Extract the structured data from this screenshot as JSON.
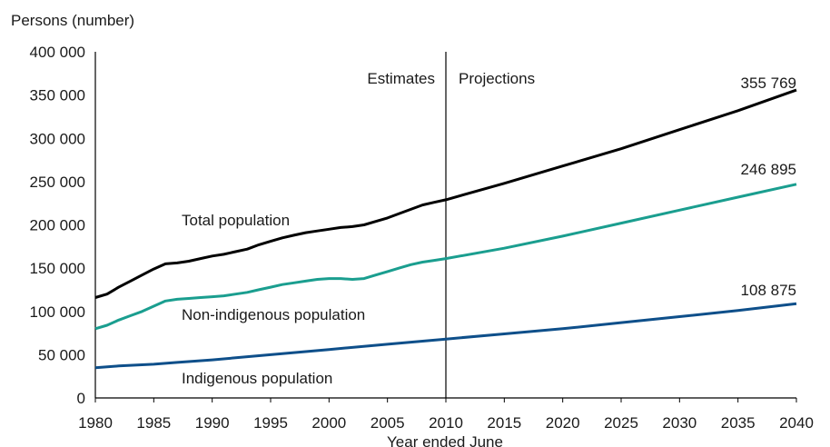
{
  "chart_data": {
    "type": "line",
    "ylabel": "Persons (number)",
    "xlabel": "Year ended June",
    "xlim": [
      1980,
      2040
    ],
    "ylim": [
      0,
      400000
    ],
    "x_ticks": [
      "1980",
      "1985",
      "1990",
      "1995",
      "2000",
      "2005",
      "2010",
      "2015",
      "2020",
      "2025",
      "2030",
      "2035",
      "2040"
    ],
    "y_ticks": [
      "0",
      "50 000",
      "100 000",
      "150 000",
      "200 000",
      "250 000",
      "300 000",
      "350 000",
      "400 000"
    ],
    "grid": false,
    "divider": {
      "x": 2010,
      "left_label": "Estimates",
      "right_label": "Projections"
    },
    "series": [
      {
        "name": "Total population",
        "color": "#000000",
        "end_label": "355 769",
        "points": [
          [
            1980,
            116000
          ],
          [
            1981,
            120000
          ],
          [
            1982,
            128000
          ],
          [
            1983,
            135000
          ],
          [
            1984,
            142000
          ],
          [
            1985,
            149000
          ],
          [
            1986,
            155000
          ],
          [
            1987,
            156000
          ],
          [
            1988,
            158000
          ],
          [
            1989,
            161000
          ],
          [
            1990,
            164000
          ],
          [
            1991,
            166000
          ],
          [
            1992,
            169000
          ],
          [
            1993,
            172000
          ],
          [
            1994,
            177000
          ],
          [
            1995,
            181000
          ],
          [
            1996,
            185000
          ],
          [
            1997,
            188000
          ],
          [
            1998,
            191000
          ],
          [
            1999,
            193000
          ],
          [
            2000,
            195000
          ],
          [
            2001,
            197000
          ],
          [
            2002,
            198000
          ],
          [
            2003,
            200000
          ],
          [
            2004,
            204000
          ],
          [
            2005,
            208000
          ],
          [
            2006,
            213000
          ],
          [
            2007,
            218000
          ],
          [
            2008,
            223000
          ],
          [
            2009,
            226000
          ],
          [
            2010,
            229000
          ],
          [
            2015,
            248000
          ],
          [
            2020,
            268000
          ],
          [
            2025,
            288000
          ],
          [
            2030,
            310000
          ],
          [
            2035,
            332000
          ],
          [
            2040,
            355769
          ]
        ]
      },
      {
        "name": "Non-indigenous population",
        "color": "#1a9e8f",
        "end_label": "246 895",
        "points": [
          [
            1980,
            80000
          ],
          [
            1981,
            84000
          ],
          [
            1982,
            90000
          ],
          [
            1983,
            95000
          ],
          [
            1984,
            100000
          ],
          [
            1985,
            106000
          ],
          [
            1986,
            112000
          ],
          [
            1987,
            114000
          ],
          [
            1988,
            115000
          ],
          [
            1989,
            116000
          ],
          [
            1990,
            117000
          ],
          [
            1991,
            118000
          ],
          [
            1992,
            120000
          ],
          [
            1993,
            122000
          ],
          [
            1994,
            125000
          ],
          [
            1995,
            128000
          ],
          [
            1996,
            131000
          ],
          [
            1997,
            133000
          ],
          [
            1998,
            135000
          ],
          [
            1999,
            137000
          ],
          [
            2000,
            138000
          ],
          [
            2001,
            138000
          ],
          [
            2002,
            137000
          ],
          [
            2003,
            138000
          ],
          [
            2004,
            142000
          ],
          [
            2005,
            146000
          ],
          [
            2006,
            150000
          ],
          [
            2007,
            154000
          ],
          [
            2008,
            157000
          ],
          [
            2009,
            159000
          ],
          [
            2010,
            161000
          ],
          [
            2015,
            173000
          ],
          [
            2020,
            187000
          ],
          [
            2025,
            202000
          ],
          [
            2030,
            217000
          ],
          [
            2035,
            232000
          ],
          [
            2040,
            246895
          ]
        ]
      },
      {
        "name": "Indigenous population",
        "color": "#0e4f8a",
        "end_label": "108 875",
        "points": [
          [
            1980,
            35000
          ],
          [
            1982,
            37000
          ],
          [
            1985,
            39000
          ],
          [
            1987,
            41000
          ],
          [
            1990,
            44000
          ],
          [
            1995,
            50000
          ],
          [
            2000,
            56000
          ],
          [
            2005,
            62000
          ],
          [
            2010,
            68000
          ],
          [
            2015,
            74000
          ],
          [
            2020,
            80000
          ],
          [
            2025,
            87000
          ],
          [
            2030,
            94000
          ],
          [
            2035,
            101000
          ],
          [
            2040,
            108875
          ]
        ]
      }
    ]
  }
}
